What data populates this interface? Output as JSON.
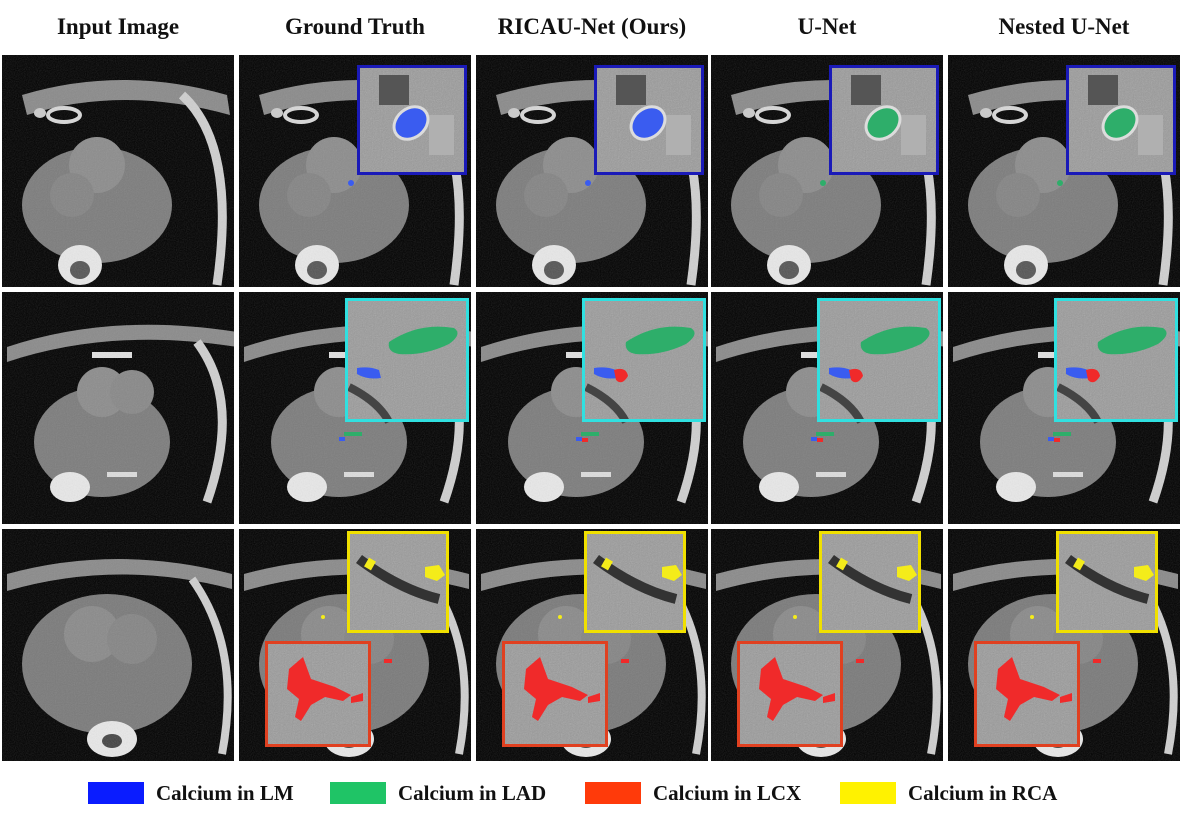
{
  "columns": [
    {
      "title": "Input Image"
    },
    {
      "title": "Ground Truth"
    },
    {
      "title": "RICAU-Net (Ours)"
    },
    {
      "title": "U-Net"
    },
    {
      "title": "Nested U-Net"
    }
  ],
  "legend": [
    {
      "label": "Calcium in LM",
      "color": "#0a1cff"
    },
    {
      "label": "Calcium in LAD",
      "color": "#1fc466"
    },
    {
      "label": "Calcium in LCX",
      "color": "#ff3a0a"
    },
    {
      "label": "Calcium in RCA",
      "color": "#fff200"
    }
  ],
  "rows": [
    {
      "inset_color": "#1a1ab8"
    },
    {
      "inset_color": "#30e0e0"
    },
    {
      "inset_colors": [
        "#f0e000",
        "#e04020"
      ]
    }
  ],
  "segmentation": {
    "row1": {
      "ground_truth": [
        "LM"
      ],
      "ricau": [
        "LM"
      ],
      "unet": [
        "LAD"
      ],
      "nested": [
        "LAD"
      ]
    },
    "row2": {
      "ground_truth": [
        "LAD",
        "LM"
      ],
      "ricau": [
        "LAD",
        "LM",
        "LCX"
      ],
      "unet": [
        "LAD",
        "LM",
        "LCX"
      ],
      "nested": [
        "LAD",
        "LM",
        "LCX"
      ]
    },
    "row3": {
      "ground_truth": [
        "RCA",
        "LCX"
      ],
      "ricau": [
        "RCA",
        "LCX"
      ],
      "unet": [
        "RCA",
        "LCX"
      ],
      "nested": [
        "RCA",
        "LCX"
      ]
    }
  },
  "colors": {
    "LM": "#3a5cf0",
    "LAD": "#2eae6a",
    "LCX": "#f02a2a",
    "RCA": "#f4ec1a"
  }
}
